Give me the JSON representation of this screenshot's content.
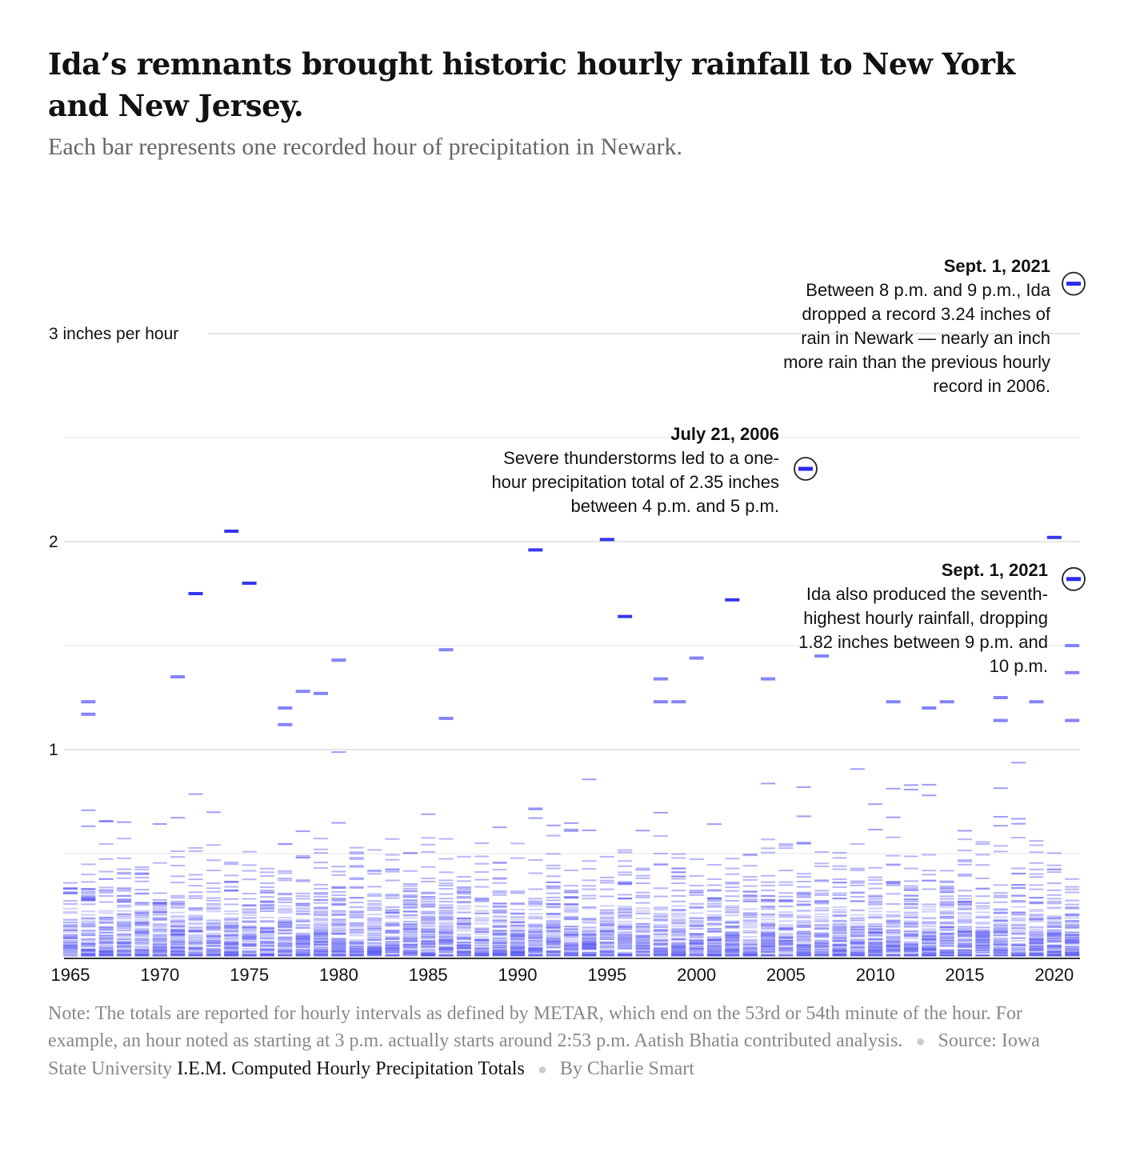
{
  "header": {
    "title": "Ida’s remnants brought historic hourly rainfall to New York and New Jersey.",
    "subtitle": "Each bar represents one recorded hour of precipitation in Newark."
  },
  "footer": {
    "note": "Note: The totals are reported for hourly intervals as defined by METAR, which end on the 53rd or 54th minute of the hour. For example, an hour noted as starting at 3 p.m. actually starts around 2:53 p.m. Aatish Bhatia contributed analysis.",
    "source_label": "Source: Iowa State University",
    "source_link": "I.E.M. Computed Hourly Precipitation Totals",
    "byline": "By Charlie Smart"
  },
  "colors": {
    "bar": "#5b5bf5",
    "bar_strong": "#2b2bef",
    "grid": "#e6e6e6",
    "axis": "#333333"
  },
  "chart_data": {
    "type": "scatter",
    "title": "Ida’s remnants brought historic hourly rainfall to New York and New Jersey.",
    "xlabel": "",
    "ylabel": "3 inches per hour",
    "xlim": [
      1965,
      2021
    ],
    "ylim": [
      0,
      3.4
    ],
    "y_ticks": [
      {
        "value": 1,
        "label": "1"
      },
      {
        "value": 2,
        "label": "2"
      },
      {
        "value": 3,
        "label": "3 inches per hour"
      }
    ],
    "x_ticks": [
      1965,
      1970,
      1975,
      1980,
      1985,
      1990,
      1995,
      2000,
      2005,
      2010,
      2015,
      2020
    ],
    "minor_grid": [
      0.5,
      1.5,
      2.5
    ],
    "notable_hours": [
      {
        "year": 1966,
        "value": 1.23
      },
      {
        "year": 1966,
        "value": 1.17
      },
      {
        "year": 1971,
        "value": 1.35
      },
      {
        "year": 1972,
        "value": 1.75
      },
      {
        "year": 1974,
        "value": 2.05
      },
      {
        "year": 1975,
        "value": 1.8
      },
      {
        "year": 1977,
        "value": 1.2
      },
      {
        "year": 1977,
        "value": 1.12
      },
      {
        "year": 1978,
        "value": 1.28
      },
      {
        "year": 1979,
        "value": 1.27
      },
      {
        "year": 1980,
        "value": 1.43
      },
      {
        "year": 1986,
        "value": 1.48
      },
      {
        "year": 1986,
        "value": 1.15
      },
      {
        "year": 1991,
        "value": 1.96
      },
      {
        "year": 1995,
        "value": 2.01
      },
      {
        "year": 1996,
        "value": 1.64
      },
      {
        "year": 1998,
        "value": 1.34
      },
      {
        "year": 1998,
        "value": 1.23
      },
      {
        "year": 1999,
        "value": 1.23
      },
      {
        "year": 2000,
        "value": 1.44
      },
      {
        "year": 2002,
        "value": 1.72
      },
      {
        "year": 2004,
        "value": 1.34
      },
      {
        "year": 2006,
        "value": 2.35
      },
      {
        "year": 2007,
        "value": 1.45
      },
      {
        "year": 2011,
        "value": 1.23
      },
      {
        "year": 2013,
        "value": 1.2
      },
      {
        "year": 2014,
        "value": 1.23
      },
      {
        "year": 2017,
        "value": 1.25
      },
      {
        "year": 2017,
        "value": 1.14
      },
      {
        "year": 2019,
        "value": 1.23
      },
      {
        "year": 2020,
        "value": 2.02
      },
      {
        "year": 2021,
        "value": 3.24
      },
      {
        "year": 2021,
        "value": 1.82
      },
      {
        "year": 2021,
        "value": 1.5
      },
      {
        "year": 2021,
        "value": 1.37
      },
      {
        "year": 2021,
        "value": 1.14
      }
    ],
    "annotations": [
      {
        "year": 2021,
        "value": 3.24,
        "heading": "Sept. 1, 2021",
        "lines": [
          "Between 8 p.m. and 9 p.m., Ida",
          "dropped a record 3.24 inches of",
          "rain in Newark — nearly an inch",
          "more rain than the previous hourly",
          "record in 2006."
        ]
      },
      {
        "year": 2006,
        "value": 2.35,
        "heading": "July 21, 2006",
        "lines": [
          "Severe thunderstorms led to a one-",
          "hour precipitation total of 2.35 inches",
          "between 4 p.m. and 5 p.m."
        ]
      },
      {
        "year": 2021,
        "value": 1.82,
        "heading": "Sept. 1, 2021",
        "lines": [
          "Ida also produced the seventh-",
          "highest hourly rainfall, dropping",
          "1.82 inches between 9 p.m. and",
          "10 p.m."
        ]
      }
    ]
  }
}
